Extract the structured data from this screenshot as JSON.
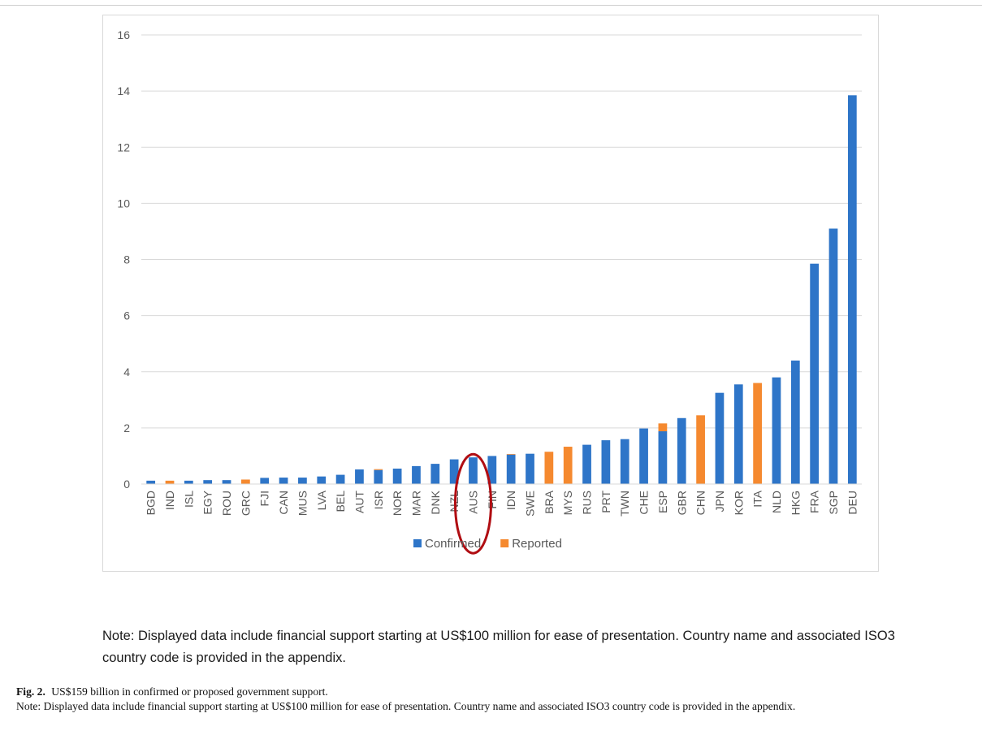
{
  "chart_data": {
    "type": "bar",
    "stacked": true,
    "title": "",
    "xlabel": "",
    "ylabel": "",
    "ylim": [
      0,
      16
    ],
    "yticks": [
      0,
      2,
      4,
      6,
      8,
      10,
      12,
      14,
      16
    ],
    "grid": true,
    "legend_position": "bottom",
    "categories": [
      "BGD",
      "IND",
      "ISL",
      "EGY",
      "ROU",
      "GRC",
      "FJI",
      "CAN",
      "MUS",
      "LVA",
      "BEL",
      "AUT",
      "ISR",
      "NOR",
      "MAR",
      "DNK",
      "NZL",
      "AUS",
      "FIN",
      "IDN",
      "SWE",
      "BRA",
      "MYS",
      "RUS",
      "PRT",
      "TWN",
      "CHE",
      "ESP",
      "GBR",
      "CHN",
      "JPN",
      "KOR",
      "ITA",
      "NLD",
      "HKG",
      "FRA",
      "SGP",
      "DEU"
    ],
    "series": [
      {
        "name": "Confirmed",
        "color": "#2e75c8",
        "values": [
          0.12,
          0,
          0.12,
          0.14,
          0.14,
          0,
          0.22,
          0.23,
          0.23,
          0.27,
          0.33,
          0.52,
          0.5,
          0.55,
          0.64,
          0.72,
          0.88,
          0.95,
          1.0,
          1.05,
          1.08,
          0,
          0,
          1.4,
          1.56,
          1.6,
          1.98,
          1.88,
          2.35,
          0,
          3.25,
          3.55,
          0,
          3.8,
          4.4,
          7.85,
          9.1,
          13.85
        ]
      },
      {
        "name": "Reported",
        "color": "#f5892f",
        "values": [
          0,
          0.12,
          0,
          0,
          0,
          0.16,
          0,
          0,
          0,
          0,
          0,
          0,
          0.03,
          0,
          0,
          0,
          0,
          0,
          0,
          0.02,
          0,
          1.15,
          1.33,
          0,
          0,
          0,
          0,
          0.28,
          0,
          2.45,
          0,
          0,
          3.6,
          0,
          0,
          0,
          0,
          0
        ]
      }
    ],
    "highlight": {
      "category": "AUS",
      "shape": "ellipse",
      "color": "#b00d12"
    }
  },
  "note": {
    "text": "Note: Displayed data include financial support starting at US$100 million for ease of presentation. Country name and associated ISO3 country code is provided in the appendix."
  },
  "caption": {
    "label": "Fig. 2.",
    "title": "US$159 billion in confirmed or proposed government support.",
    "note": "Note: Displayed data include financial support starting at US$100 million for ease of presentation. Country name and associated ISO3 country code is provided in the appendix."
  }
}
